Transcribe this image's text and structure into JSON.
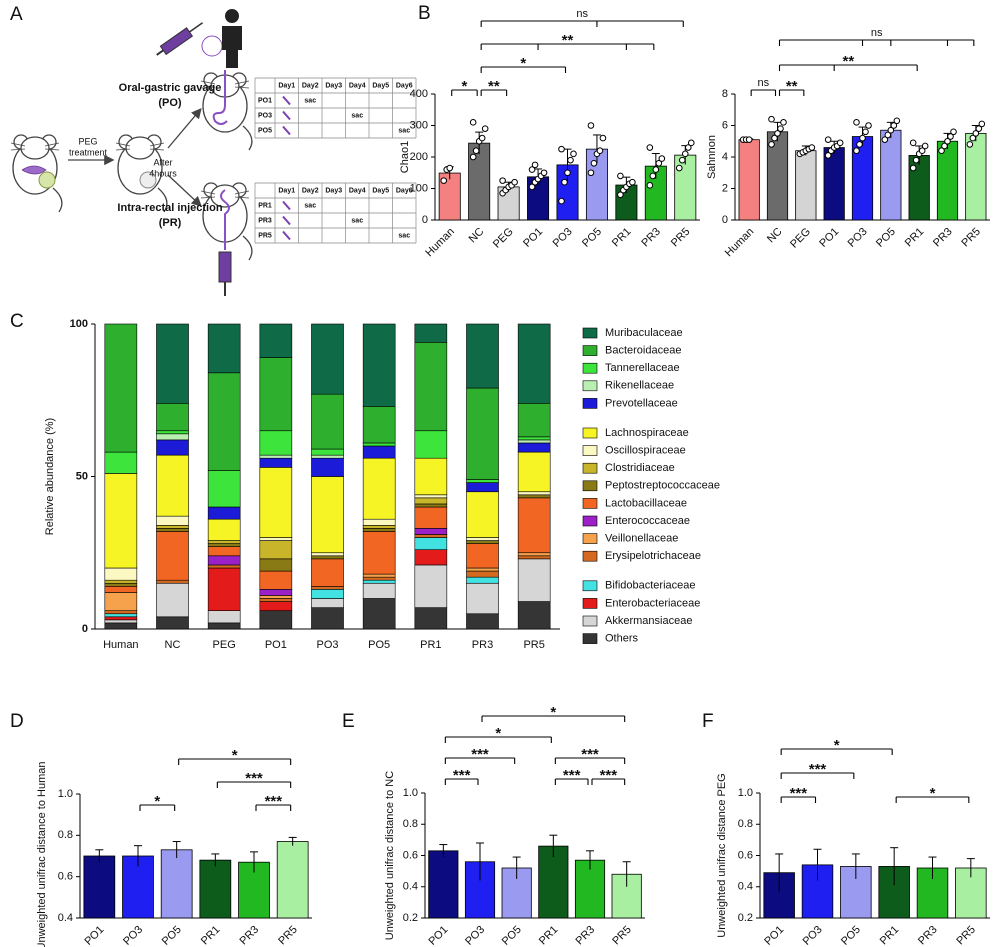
{
  "panel_labels": [
    "A",
    "B",
    "C",
    "D",
    "E",
    "F"
  ],
  "diagram": {
    "po_label": "Oral-gastric gavage",
    "po_abbr": "(PO)",
    "pr_label": "Intra-rectal injection",
    "pr_abbr": "(PR)",
    "peg_text": [
      "PEG",
      "treatment"
    ],
    "after_text": [
      "After",
      "4hours"
    ],
    "tables": [
      {
        "columns": [
          "Day1",
          "Day2",
          "Day3",
          "Day4",
          "Day5",
          "Day6"
        ],
        "rows": [
          {
            "label": "PO1",
            "cells": [
              null,
              "sac",
              null,
              null,
              null,
              null
            ]
          },
          {
            "label": "PO3",
            "cells": [
              null,
              null,
              null,
              "sac",
              null,
              null
            ]
          },
          {
            "label": "PO5",
            "cells": [
              null,
              null,
              null,
              null,
              null,
              "sac"
            ]
          }
        ]
      },
      {
        "columns": [
          "Day1",
          "Day2",
          "Day3",
          "Day4",
          "Day5",
          "Day6"
        ],
        "rows": [
          {
            "label": "PR1",
            "cells": [
              null,
              "sac",
              null,
              null,
              null,
              null
            ]
          },
          {
            "label": "PR3",
            "cells": [
              null,
              null,
              null,
              "sac",
              null,
              null
            ]
          },
          {
            "label": "PR5",
            "cells": [
              null,
              null,
              null,
              null,
              null,
              "sac"
            ]
          }
        ]
      }
    ]
  },
  "chart_data": [
    {
      "type": "bar",
      "ylabel": "Chao1",
      "categories": [
        "Human",
        "NC",
        "PEG",
        "PO1",
        "PO3",
        "PO5",
        "PR1",
        "PR3",
        "PR5"
      ],
      "values": [
        149,
        244,
        105,
        137,
        175,
        225,
        111,
        171,
        206
      ],
      "errors": [
        20,
        35,
        15,
        25,
        50,
        45,
        25,
        40,
        30
      ],
      "points": [
        [
          125,
          160,
          165
        ],
        [
          200,
          220,
          250,
          260,
          290,
          310
        ],
        [
          85,
          95,
          105,
          110,
          120,
          125
        ],
        [
          105,
          120,
          130,
          140,
          150,
          160,
          175
        ],
        [
          60,
          120,
          150,
          190,
          210,
          225
        ],
        [
          150,
          180,
          210,
          220,
          260,
          300
        ],
        [
          80,
          95,
          105,
          115,
          120,
          140
        ],
        [
          110,
          140,
          160,
          180,
          195,
          230
        ],
        [
          165,
          190,
          210,
          230,
          245
        ]
      ],
      "colors": [
        "#f4817f",
        "#6b6b6b",
        "#d4d4d4",
        "#0c0c80",
        "#1f1ff2",
        "#9a9af0",
        "#0d5c1c",
        "#22b822",
        "#a9efa2"
      ],
      "ylim": [
        0,
        400
      ],
      "yticks": [
        0,
        100,
        200,
        300,
        400
      ],
      "brackets": [
        {
          "targets": [
            "Human",
            "NC"
          ],
          "label": "*"
        },
        {
          "targets": [
            "NC",
            "PEG"
          ],
          "label": "**"
        },
        {
          "targets": [
            "NC",
            "PO3"
          ],
          "label": "*"
        },
        {
          "targets": [
            "NC",
            "PO1",
            "PR1",
            "PR3"
          ],
          "label": "**"
        },
        {
          "targets": [
            "NC",
            "PO5",
            "PR5"
          ],
          "label": "ns"
        }
      ]
    },
    {
      "type": "bar",
      "ylabel": "Sahnnon",
      "categories": [
        "Human",
        "NC",
        "PEG",
        "PO1",
        "PO3",
        "PO5",
        "PR1",
        "PR3",
        "PR5"
      ],
      "values": [
        5.1,
        5.6,
        4.4,
        4.6,
        5.3,
        5.7,
        4.1,
        5.0,
        5.5
      ],
      "errors": [
        0.05,
        0.6,
        0.3,
        0.4,
        0.6,
        0.5,
        0.6,
        0.5,
        0.5
      ],
      "points": [
        [
          5.1,
          5.1,
          5.1
        ],
        [
          4.8,
          5.2,
          5.5,
          5.8,
          6.2,
          6.4
        ],
        [
          4.2,
          4.3,
          4.4,
          4.5,
          4.6
        ],
        [
          4.1,
          4.4,
          4.6,
          4.7,
          4.9,
          5.1
        ],
        [
          4.4,
          4.8,
          5.2,
          5.6,
          6.0,
          6.2
        ],
        [
          5.1,
          5.4,
          5.7,
          6.0,
          6.3
        ],
        [
          3.3,
          3.8,
          4.2,
          4.4,
          4.7,
          4.9
        ],
        [
          4.4,
          4.7,
          5.0,
          5.3,
          5.6
        ],
        [
          4.8,
          5.2,
          5.5,
          5.8,
          6.1
        ]
      ],
      "colors": [
        "#f4817f",
        "#6b6b6b",
        "#d4d4d4",
        "#0c0c80",
        "#1f1ff2",
        "#9a9af0",
        "#0d5c1c",
        "#22b822",
        "#a9efa2"
      ],
      "ylim": [
        0,
        8
      ],
      "yticks": [
        0,
        2,
        4,
        6,
        8
      ],
      "brackets": [
        {
          "targets": [
            "Human",
            "NC"
          ],
          "label": "ns"
        },
        {
          "targets": [
            "NC",
            "PEG"
          ],
          "label": "**"
        },
        {
          "targets": [
            "NC",
            "PO1",
            "PR1"
          ],
          "label": "**"
        },
        {
          "targets": [
            "NC",
            "PO3",
            "PO5",
            "PR3",
            "PR5"
          ],
          "label": "ns"
        }
      ]
    },
    {
      "type": "stacked_bar",
      "ylabel": "Relative abundance (%)",
      "categories": [
        "Human",
        "NC",
        "PEG",
        "PO1",
        "PO3",
        "PO5",
        "PR1",
        "PR3",
        "PR5"
      ],
      "ylim": [
        0,
        100
      ],
      "yticks": [
        0,
        50,
        100
      ],
      "series": [
        {
          "name": "Muribaculaceae",
          "color": "#0f6b47",
          "values": [
            0,
            26,
            16,
            11,
            23,
            27,
            6,
            21,
            26
          ]
        },
        {
          "name": "Bacteroidaceae",
          "color": "#2eb02e",
          "values": [
            42,
            9,
            32,
            24,
            18,
            12,
            29,
            30,
            11
          ]
        },
        {
          "name": "Tannerellaceae",
          "color": "#3ce43c",
          "values": [
            7,
            1,
            12,
            8,
            2,
            1,
            9,
            1,
            1
          ]
        },
        {
          "name": "Rikenellaceae",
          "color": "#b9f0b1",
          "values": [
            0,
            2,
            0,
            1,
            1,
            0,
            0,
            0,
            1
          ]
        },
        {
          "name": "Prevotellaceae",
          "color": "#1b1bd8",
          "values": [
            0,
            5,
            4,
            3,
            6,
            4,
            0,
            3,
            3
          ]
        },
        {
          "name": "Lachnospiraceae",
          "color": "#f6f424",
          "values": [
            31,
            20,
            7,
            23,
            25,
            20,
            12,
            15,
            13
          ]
        },
        {
          "name": "Oscillospiraceae",
          "color": "#fbf8c2",
          "values": [
            4,
            3,
            0,
            1,
            1,
            2,
            1,
            1,
            1
          ]
        },
        {
          "name": "Clostridiaceae",
          "color": "#c9b52a",
          "values": [
            1,
            1,
            1,
            6,
            0,
            1,
            2,
            0,
            0
          ]
        },
        {
          "name": "Peptostreptococcaceae",
          "color": "#8a7a16",
          "values": [
            1,
            1,
            1,
            4,
            1,
            1,
            1,
            1,
            1
          ]
        },
        {
          "name": "Lactobacillaceae",
          "color": "#f26624",
          "values": [
            2,
            16,
            3,
            6,
            9,
            14,
            7,
            8,
            18
          ]
        },
        {
          "name": "Enterococcaceae",
          "color": "#9c20c8",
          "values": [
            0,
            0,
            3,
            2,
            0,
            0,
            2,
            0,
            0
          ]
        },
        {
          "name": "Veillonellaceae",
          "color": "#f6a24c",
          "values": [
            6,
            0,
            0,
            1,
            0,
            1,
            0,
            1,
            1
          ]
        },
        {
          "name": "Erysipelotrichaceae",
          "color": "#d46a1f",
          "values": [
            1,
            1,
            1,
            1,
            1,
            1,
            1,
            2,
            1
          ]
        },
        {
          "name": "Bifidobacteriaceae",
          "color": "#42e2e2",
          "values": [
            1,
            0,
            0,
            0,
            3,
            1,
            4,
            2,
            0
          ]
        },
        {
          "name": "Enterobacteriaceae",
          "color": "#e31b1b",
          "values": [
            1,
            0,
            14,
            3,
            0,
            0,
            5,
            0,
            0
          ]
        },
        {
          "name": "Akkermansiaceae",
          "color": "#d6d6d6",
          "values": [
            1,
            11,
            4,
            0,
            3,
            5,
            14,
            10,
            14
          ]
        },
        {
          "name": "Others",
          "color": "#353535",
          "values": [
            2,
            4,
            2,
            6,
            7,
            10,
            7,
            5,
            9
          ]
        }
      ]
    },
    {
      "type": "bar",
      "ylabel": "Unweighted unifrac distance to Human",
      "categories": [
        "PO1",
        "PO3",
        "PO5",
        "PR1",
        "PR3",
        "PR5"
      ],
      "values": [
        0.7,
        0.7,
        0.73,
        0.68,
        0.67,
        0.77
      ],
      "errors": [
        0.03,
        0.05,
        0.04,
        0.03,
        0.05,
        0.02
      ],
      "colors": [
        "#0c0c80",
        "#1f1ff2",
        "#9a9af0",
        "#0d5c1c",
        "#22b822",
        "#a9efa2"
      ],
      "ylim": [
        0.4,
        1
      ],
      "yticks": [
        0.4,
        0.6,
        0.8,
        {
          "value": 1,
          "label": "1.0"
        }
      ],
      "brackets": [
        {
          "targets": [
            "PO3",
            "PO5"
          ],
          "label": "*"
        },
        {
          "targets": [
            "PR3",
            "PR5"
          ],
          "label": "***"
        },
        {
          "targets": [
            "PR1",
            "PR5"
          ],
          "label": "***"
        },
        {
          "targets": [
            "PO5",
            "PR5"
          ],
          "label": "*"
        }
      ]
    },
    {
      "type": "bar",
      "ylabel": "Unweighted unifrac distance to NC",
      "categories": [
        "PO1",
        "PO3",
        "PO5",
        "PR1",
        "PR3",
        "PR5"
      ],
      "values": [
        0.63,
        0.56,
        0.52,
        0.66,
        0.57,
        0.48
      ],
      "errors": [
        0.04,
        0.12,
        0.07,
        0.07,
        0.06,
        0.08
      ],
      "colors": [
        "#0c0c80",
        "#1f1ff2",
        "#9a9af0",
        "#0d5c1c",
        "#22b822",
        "#a9efa2"
      ],
      "ylim": [
        0.2,
        1
      ],
      "yticks": [
        0.2,
        0.4,
        0.6,
        0.8,
        {
          "value": 1,
          "label": "1.0"
        }
      ],
      "brackets": [
        {
          "targets": [
            "PO1",
            "PO3"
          ],
          "label": "***"
        },
        {
          "targets": [
            "PR1",
            "PR3"
          ],
          "label": "***"
        },
        {
          "targets": [
            "PR3",
            "PR5"
          ],
          "label": "***"
        },
        {
          "targets": [
            "PO1",
            "PO5"
          ],
          "label": "***"
        },
        {
          "targets": [
            "PR1",
            "PR5"
          ],
          "label": "***"
        },
        {
          "targets": [
            "PO1",
            "PR1"
          ],
          "label": "*"
        },
        {
          "targets": [
            "PO3",
            "PR5"
          ],
          "label": "*"
        }
      ]
    },
    {
      "type": "bar",
      "ylabel": "Unweighted unifrac distance PEG",
      "categories": [
        "PO1",
        "PO3",
        "PO5",
        "PR1",
        "PR3",
        "PR5"
      ],
      "values": [
        0.49,
        0.54,
        0.53,
        0.53,
        0.52,
        0.52
      ],
      "errors": [
        0.12,
        0.1,
        0.08,
        0.12,
        0.07,
        0.06
      ],
      "colors": [
        "#0c0c80",
        "#1f1ff2",
        "#9a9af0",
        "#0d5c1c",
        "#22b822",
        "#a9efa2"
      ],
      "ylim": [
        0.2,
        1
      ],
      "yticks": [
        0.2,
        0.4,
        0.6,
        0.8,
        {
          "value": 1,
          "label": "1.0"
        }
      ],
      "brackets": [
        {
          "targets": [
            "PO1",
            "PO3"
          ],
          "label": "***"
        },
        {
          "targets": [
            "PO1",
            "PO5"
          ],
          "label": "***"
        },
        {
          "targets": [
            "PR1",
            "PR5"
          ],
          "label": "*"
        },
        {
          "targets": [
            "PO1",
            "PR1"
          ],
          "label": "*"
        }
      ]
    }
  ]
}
